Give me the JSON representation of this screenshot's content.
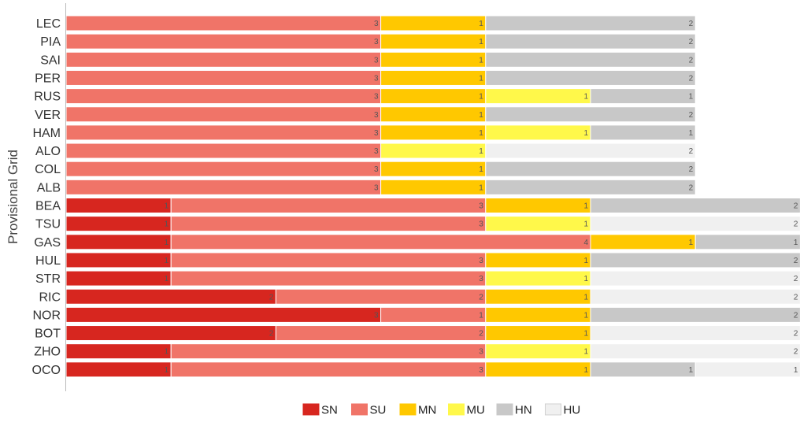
{
  "chart_data": {
    "type": "bar",
    "orientation": "horizontal",
    "stacked": true,
    "ylabel": "Provisional Grid",
    "xlabel": "",
    "grid": false,
    "legend_position": "bottom-center",
    "categories": [
      "LEC",
      "PIA",
      "SAI",
      "PER",
      "RUS",
      "VER",
      "HAM",
      "ALO",
      "COL",
      "ALB",
      "BEA",
      "TSU",
      "GAS",
      "HUL",
      "STR",
      "RIC",
      "NOR",
      "BOT",
      "ZHO",
      "OCO"
    ],
    "series": [
      {
        "name": "SN",
        "color": "#d7261f",
        "values": [
          0,
          0,
          0,
          0,
          0,
          0,
          0,
          0,
          0,
          0,
          1,
          1,
          1,
          1,
          1,
          2,
          3,
          2,
          1,
          1
        ]
      },
      {
        "name": "SU",
        "color": "#f07468",
        "values": [
          3,
          3,
          3,
          3,
          3,
          3,
          3,
          3,
          3,
          3,
          3,
          3,
          4,
          3,
          3,
          2,
          1,
          2,
          3,
          3
        ]
      },
      {
        "name": "MN",
        "color": "#ffc800",
        "values": [
          1,
          1,
          1,
          1,
          1,
          1,
          1,
          0,
          1,
          1,
          1,
          0,
          1,
          1,
          0,
          1,
          1,
          1,
          0,
          1
        ]
      },
      {
        "name": "MU",
        "color": "#fff84a",
        "values": [
          0,
          0,
          0,
          0,
          1,
          0,
          1,
          1,
          0,
          0,
          0,
          1,
          0,
          0,
          1,
          0,
          0,
          0,
          1,
          0
        ]
      },
      {
        "name": "HN",
        "color": "#c8c8c8",
        "values": [
          2,
          2,
          2,
          2,
          1,
          2,
          1,
          0,
          2,
          2,
          2,
          0,
          1,
          2,
          0,
          0,
          2,
          0,
          0,
          1
        ]
      },
      {
        "name": "HU",
        "color": "#f0f0f0",
        "values": [
          0,
          0,
          0,
          0,
          0,
          0,
          0,
          2,
          0,
          0,
          0,
          2,
          0,
          0,
          2,
          2,
          0,
          2,
          2,
          1
        ]
      }
    ]
  }
}
